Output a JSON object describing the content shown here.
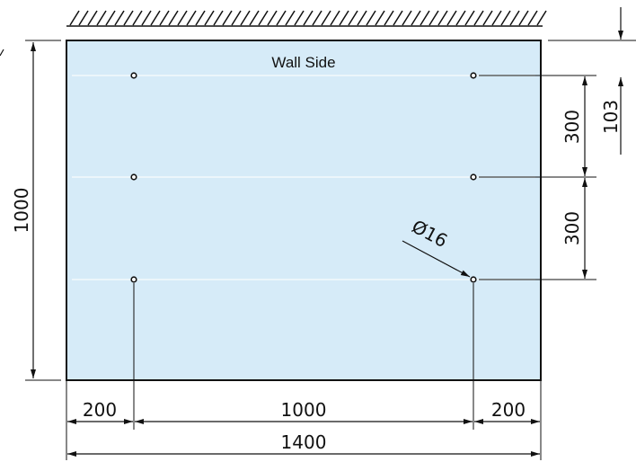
{
  "colors": {
    "panel_fill": "#d6ebf8",
    "panel_stroke": "#111111",
    "line": "#111111",
    "hole_fill": "#ffffff"
  },
  "panel": {
    "label": "Wall Side",
    "width_label": "1400",
    "height_label": "1000"
  },
  "dimensions": {
    "left_margin": "200",
    "hole_span": "1000",
    "right_margin": "200",
    "row_spacing_1": "300",
    "row_spacing_2": "300",
    "top_offset": "103",
    "hole_diameter": "Ø16"
  },
  "holes": {
    "count": 6,
    "rows": 3,
    "columns": 2,
    "diameter_mm": 16
  }
}
